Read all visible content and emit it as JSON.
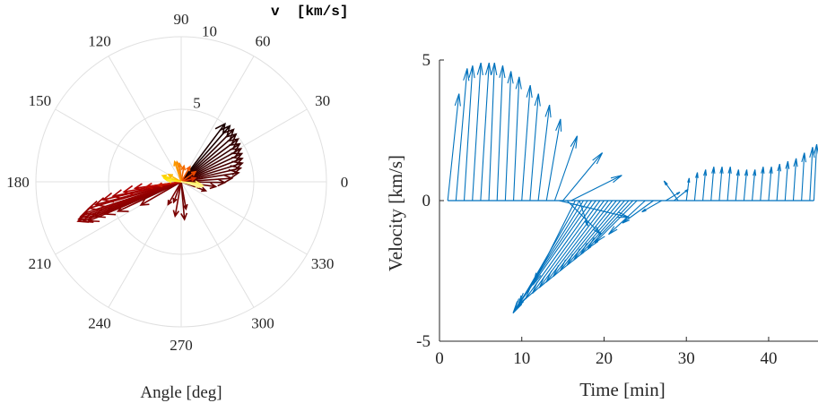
{
  "chart_data": [
    {
      "type": "compass",
      "title": "",
      "xlabel": "Angle [deg]",
      "rlabel": "v  [km/s]",
      "rticks": [
        5,
        10
      ],
      "rlim": [
        0,
        10
      ],
      "angle_ticks": [
        "0",
        "30",
        "60",
        "90",
        "120",
        "150",
        "180",
        "210",
        "240",
        "270",
        "300",
        "330"
      ],
      "grid": true,
      "arrows": [
        {
          "angle": 53,
          "r": 5.0,
          "color": "#1a0000"
        },
        {
          "angle": 49,
          "r": 5.1,
          "color": "#1a0000"
        },
        {
          "angle": 45,
          "r": 5.1,
          "color": "#2a0000"
        },
        {
          "angle": 41,
          "r": 5.0,
          "color": "#2a0000"
        },
        {
          "angle": 37,
          "r": 4.9,
          "color": "#330000"
        },
        {
          "angle": 33,
          "r": 4.8,
          "color": "#330000"
        },
        {
          "angle": 29,
          "r": 4.7,
          "color": "#3d0000"
        },
        {
          "angle": 25,
          "r": 4.6,
          "color": "#3d0000"
        },
        {
          "angle": 21,
          "r": 4.5,
          "color": "#470000"
        },
        {
          "angle": 17,
          "r": 4.4,
          "color": "#470000"
        },
        {
          "angle": 13,
          "r": 4.2,
          "color": "#520000"
        },
        {
          "angle": 9,
          "r": 4.0,
          "color": "#520000"
        },
        {
          "angle": 4,
          "r": 3.5,
          "color": "#5c0000"
        },
        {
          "angle": -1,
          "r": 3.0,
          "color": "#5c0000"
        },
        {
          "angle": -8,
          "r": 2.4,
          "color": "#660000"
        },
        {
          "angle": -20,
          "r": 1.8,
          "color": "#660000"
        },
        {
          "angle": -80,
          "r": 1.9,
          "color": "#700000"
        },
        {
          "angle": -85,
          "r": 2.6,
          "color": "#700000"
        },
        {
          "angle": -110,
          "r": 1.5,
          "color": "#750000"
        },
        {
          "angle": -100,
          "r": 2.4,
          "color": "#7a0000"
        },
        {
          "angle": -120,
          "r": 1.8,
          "color": "#7a0000"
        },
        {
          "angle": -150,
          "r": 3.2,
          "color": "#800000"
        },
        {
          "angle": -155,
          "r": 4.8,
          "color": "#800000"
        },
        {
          "angle": -157,
          "r": 5.7,
          "color": "#850000"
        },
        {
          "angle": -158,
          "r": 6.4,
          "color": "#850000"
        },
        {
          "angle": -157,
          "r": 6.9,
          "color": "#8a0000"
        },
        {
          "angle": -158,
          "r": 7.3,
          "color": "#8a0000"
        },
        {
          "angle": -159,
          "r": 7.6,
          "color": "#8f0000"
        },
        {
          "angle": -160,
          "r": 7.5,
          "color": "#8f0000"
        },
        {
          "angle": -161,
          "r": 7.3,
          "color": "#940000"
        },
        {
          "angle": -162,
          "r": 7.0,
          "color": "#940000"
        },
        {
          "angle": -164,
          "r": 6.6,
          "color": "#990000"
        },
        {
          "angle": -165,
          "r": 6.1,
          "color": "#990000"
        },
        {
          "angle": -167,
          "r": 5.5,
          "color": "#a30000"
        },
        {
          "angle": -168,
          "r": 4.8,
          "color": "#a30000"
        },
        {
          "angle": -170,
          "r": 4.0,
          "color": "#b00000"
        },
        {
          "angle": -172,
          "r": 3.2,
          "color": "#b00000"
        },
        {
          "angle": -172,
          "r": 2.4,
          "color": "#bf0a00"
        },
        {
          "angle": -171,
          "r": 1.6,
          "color": "#cc1a00"
        },
        {
          "angle": 15,
          "r": 1.0,
          "color": "#e03000"
        },
        {
          "angle": 35,
          "r": 1.2,
          "color": "#ee4a00"
        },
        {
          "angle": 60,
          "r": 1.2,
          "color": "#f25a00"
        },
        {
          "angle": 80,
          "r": 1.1,
          "color": "#f56a00"
        },
        {
          "angle": 95,
          "r": 1.25,
          "color": "#f77a00"
        },
        {
          "angle": 102,
          "r": 1.4,
          "color": "#f98800"
        },
        {
          "angle": 108,
          "r": 1.45,
          "color": "#fb9800"
        },
        {
          "angle": 150,
          "r": 1.0,
          "color": "#fcb800"
        },
        {
          "angle": 162,
          "r": 1.35,
          "color": "#fdd000"
        },
        {
          "angle": 168,
          "r": 1.2,
          "color": "#fde000"
        },
        {
          "angle": 174,
          "r": 0.95,
          "color": "#feea30"
        },
        {
          "angle": -5,
          "r": 1.25,
          "color": "#fff060"
        },
        {
          "angle": -10,
          "r": 1.5,
          "color": "#fff070"
        },
        {
          "angle": -12,
          "r": 1.5,
          "color": "#fff280"
        },
        {
          "angle": -15,
          "r": 1.3,
          "color": "#fff490"
        }
      ]
    },
    {
      "type": "feather",
      "title": "",
      "xlabel": "Time [min]",
      "ylabel": "Velocity [km/s]",
      "xlim": [
        0,
        46
      ],
      "ylim": [
        -5,
        5
      ],
      "xticks": [
        0,
        10,
        20,
        30,
        40
      ],
      "yticks": [
        -5,
        0,
        5
      ],
      "color": "#0072BD",
      "vectors": [
        {
          "t": 1,
          "u": 0.4,
          "v": 3.8
        },
        {
          "t": 2,
          "u": 0.4,
          "v": 4.7
        },
        {
          "t": 3,
          "u": 0.3,
          "v": 4.8
        },
        {
          "t": 4,
          "u": 0.3,
          "v": 4.9
        },
        {
          "t": 5,
          "u": 0.3,
          "v": 4.9
        },
        {
          "t": 6,
          "u": 0.2,
          "v": 4.9
        },
        {
          "t": 7,
          "u": 0.2,
          "v": 4.8
        },
        {
          "t": 8,
          "u": 0.2,
          "v": 4.6
        },
        {
          "t": 9,
          "u": 0.2,
          "v": 4.4
        },
        {
          "t": 10,
          "u": 0.3,
          "v": 4.1
        },
        {
          "t": 11,
          "u": 0.3,
          "v": 3.8
        },
        {
          "t": 12,
          "u": 0.4,
          "v": 3.4
        },
        {
          "t": 13,
          "u": 0.5,
          "v": 2.9
        },
        {
          "t": 14,
          "u": 0.8,
          "v": 2.3
        },
        {
          "t": 15,
          "u": 1.4,
          "v": 1.7
        },
        {
          "t": 16,
          "u": 1.8,
          "v": 0.9
        },
        {
          "t": 17,
          "u": 0.3,
          "v": -0.9
        },
        {
          "t": 14.5,
          "u": 2.5,
          "v": -0.6
        },
        {
          "t": 15.5,
          "u": 1.2,
          "v": -1.2
        },
        {
          "t": 16.5,
          "u": -1.5,
          "v": -3.0
        },
        {
          "t": 17,
          "u": -2.2,
          "v": -3.8
        },
        {
          "t": 17.5,
          "u": -2.5,
          "v": -4.0
        },
        {
          "t": 18,
          "u": -2.6,
          "v": -3.9
        },
        {
          "t": 18.5,
          "u": -2.6,
          "v": -3.7
        },
        {
          "t": 19,
          "u": -2.5,
          "v": -3.5
        },
        {
          "t": 19.5,
          "u": -2.4,
          "v": -3.3
        },
        {
          "t": 20,
          "u": -2.3,
          "v": -3.1
        },
        {
          "t": 20.5,
          "u": -2.2,
          "v": -2.9
        },
        {
          "t": 21,
          "u": -2.1,
          "v": -2.7
        },
        {
          "t": 21.5,
          "u": -2.0,
          "v": -2.5
        },
        {
          "t": 22,
          "u": -1.9,
          "v": -2.3
        },
        {
          "t": 22.5,
          "u": -1.8,
          "v": -2.1
        },
        {
          "t": 23,
          "u": -1.7,
          "v": -1.9
        },
        {
          "t": 23.5,
          "u": -1.6,
          "v": -1.7
        },
        {
          "t": 24,
          "u": -1.5,
          "v": -1.5
        },
        {
          "t": 25,
          "u": -1.3,
          "v": -1.2
        },
        {
          "t": 26,
          "u": -1.1,
          "v": -0.8
        },
        {
          "t": 27,
          "u": -0.7,
          "v": -0.4
        },
        {
          "t": 27.5,
          "u": 0.5,
          "v": 0.3
        },
        {
          "t": 28.5,
          "u": 0.5,
          "v": 0.4
        },
        {
          "t": 29,
          "u": -0.5,
          "v": 0.7
        },
        {
          "t": 30,
          "u": 0.1,
          "v": 0.8
        },
        {
          "t": 31,
          "u": 0.1,
          "v": 1.0
        },
        {
          "t": 32,
          "u": 0.1,
          "v": 1.1
        },
        {
          "t": 33,
          "u": 0.1,
          "v": 1.2
        },
        {
          "t": 34,
          "u": 0.1,
          "v": 1.2
        },
        {
          "t": 35,
          "u": 0.1,
          "v": 1.2
        },
        {
          "t": 36,
          "u": 0.1,
          "v": 1.1
        },
        {
          "t": 37,
          "u": 0.1,
          "v": 1.1
        },
        {
          "t": 38,
          "u": 0.1,
          "v": 1.1
        },
        {
          "t": 39,
          "u": 0.1,
          "v": 1.2
        },
        {
          "t": 40,
          "u": 0.1,
          "v": 1.2
        },
        {
          "t": 41,
          "u": 0.1,
          "v": 1.3
        },
        {
          "t": 42,
          "u": 0.1,
          "v": 1.4
        },
        {
          "t": 43,
          "u": 0.1,
          "v": 1.5
        },
        {
          "t": 44,
          "u": 0.1,
          "v": 1.7
        },
        {
          "t": 45,
          "u": 0.1,
          "v": 1.9
        },
        {
          "t": 45.5,
          "u": 0.1,
          "v": 2.0
        }
      ]
    }
  ]
}
